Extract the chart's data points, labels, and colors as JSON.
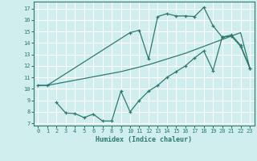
{
  "title": "",
  "xlabel": "Humidex (Indice chaleur)",
  "bg_color": "#d0eeee",
  "grid_color": "#ffffff",
  "line_color": "#2d7a6e",
  "xlim": [
    -0.5,
    23.5
  ],
  "ylim": [
    6.8,
    17.6
  ],
  "yticks": [
    7,
    8,
    9,
    10,
    11,
    12,
    13,
    14,
    15,
    16,
    17
  ],
  "xticks": [
    0,
    1,
    2,
    3,
    4,
    5,
    6,
    7,
    8,
    9,
    10,
    11,
    12,
    13,
    14,
    15,
    16,
    17,
    18,
    19,
    20,
    21,
    22,
    23
  ],
  "line1_x": [
    0,
    1,
    2,
    3,
    4,
    5,
    6,
    7,
    8,
    9,
    10,
    11,
    12,
    13,
    14,
    15,
    16,
    17,
    18,
    19,
    20,
    21,
    22,
    23
  ],
  "line1_y": [
    10.3,
    10.3,
    10.45,
    10.6,
    10.75,
    10.9,
    11.05,
    11.2,
    11.35,
    11.5,
    11.7,
    11.9,
    12.1,
    12.35,
    12.6,
    12.85,
    13.1,
    13.4,
    13.7,
    14.0,
    14.3,
    14.6,
    14.9,
    11.8
  ],
  "line2_x": [
    0,
    1,
    10,
    11,
    12,
    13,
    14,
    15,
    16,
    17,
    18,
    19,
    20,
    21,
    22,
    23
  ],
  "line2_y": [
    10.3,
    10.3,
    14.9,
    15.1,
    12.6,
    16.3,
    16.55,
    16.35,
    16.35,
    16.3,
    17.1,
    15.5,
    14.5,
    14.7,
    13.8,
    11.8
  ],
  "line3_x": [
    2,
    3,
    4,
    5,
    6,
    7,
    8,
    9,
    10,
    11,
    12,
    13,
    14,
    15,
    16,
    17,
    18,
    19,
    20,
    21,
    22,
    23
  ],
  "line3_y": [
    8.8,
    7.9,
    7.85,
    7.5,
    7.8,
    7.2,
    7.2,
    9.8,
    8.0,
    9.0,
    9.8,
    10.3,
    11.0,
    11.5,
    12.0,
    12.7,
    13.3,
    11.6,
    14.5,
    14.6,
    13.7,
    11.8
  ]
}
